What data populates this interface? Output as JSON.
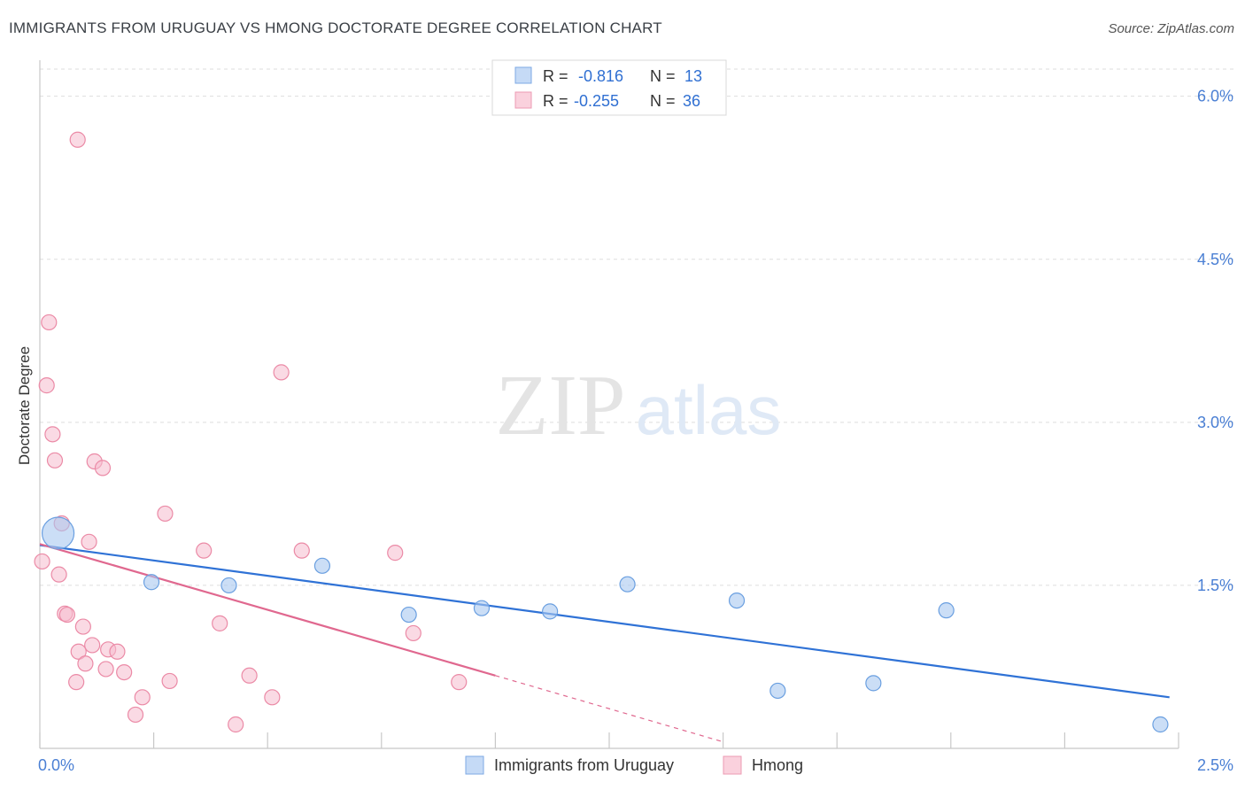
{
  "header": {
    "title": "IMMIGRANTS FROM URUGUAY VS HMONG DOCTORATE DEGREE CORRELATION CHART",
    "source": "Source: ZipAtlas.com"
  },
  "watermark": {
    "zip": "ZIP",
    "atlas": "atlas"
  },
  "colors": {
    "blue_fill": "#a8c8f0",
    "blue_stroke": "#6a9fe0",
    "blue_line": "#2f72d6",
    "pink_fill": "#f6bccd",
    "pink_stroke": "#eb8aa6",
    "pink_line": "#e0688f",
    "tick_label": "#4a7fd4",
    "grid": "#dddddd"
  },
  "legend_top": [
    {
      "series": "Immigrants from Uruguay",
      "r_label": "R =",
      "r_value": "-0.816",
      "n_label": "N =",
      "n_value": "13"
    },
    {
      "series": "Hmong",
      "r_label": "R =",
      "r_value": "-0.255",
      "n_label": "N =",
      "n_value": "36"
    }
  ],
  "chart_data": {
    "type": "scatter",
    "title": "IMMIGRANTS FROM URUGUAY VS HMONG DOCTORATE DEGREE CORRELATION CHART",
    "xlabel": "",
    "ylabel": "Doctorate Degree",
    "xlim": [
      0,
      2.5
    ],
    "ylim": [
      0,
      6.25
    ],
    "x_tick_labels": [
      "0.0%",
      "2.5%"
    ],
    "y_ticks": [
      1.5,
      3.0,
      4.5,
      6.0
    ],
    "y_tick_labels": [
      "1.5%",
      "3.0%",
      "4.5%",
      "6.0%"
    ],
    "legend_position": "bottom-center",
    "series": [
      {
        "name": "Immigrants from Uruguay",
        "color": "blue",
        "points": [
          {
            "x": 0.04,
            "y": 1.98,
            "size": "large"
          },
          {
            "x": 0.245,
            "y": 1.53
          },
          {
            "x": 0.415,
            "y": 1.5
          },
          {
            "x": 0.62,
            "y": 1.68
          },
          {
            "x": 0.81,
            "y": 1.23
          },
          {
            "x": 0.97,
            "y": 1.29
          },
          {
            "x": 1.12,
            "y": 1.26
          },
          {
            "x": 1.29,
            "y": 1.51
          },
          {
            "x": 1.53,
            "y": 1.36
          },
          {
            "x": 1.99,
            "y": 1.27
          },
          {
            "x": 1.62,
            "y": 0.53
          },
          {
            "x": 1.83,
            "y": 0.6
          },
          {
            "x": 2.46,
            "y": 0.22
          }
        ],
        "trend": {
          "x0": 0.0,
          "y0": 1.87,
          "x1": 2.48,
          "y1": 0.47
        }
      },
      {
        "name": "Hmong",
        "color": "pink",
        "points": [
          {
            "x": 0.083,
            "y": 5.6
          },
          {
            "x": 0.02,
            "y": 3.92
          },
          {
            "x": 0.015,
            "y": 3.34
          },
          {
            "x": 0.028,
            "y": 2.89
          },
          {
            "x": 0.033,
            "y": 2.65
          },
          {
            "x": 0.12,
            "y": 2.64
          },
          {
            "x": 0.138,
            "y": 2.58
          },
          {
            "x": 0.53,
            "y": 3.46
          },
          {
            "x": 0.275,
            "y": 2.16
          },
          {
            "x": 0.048,
            "y": 2.07
          },
          {
            "x": 0.108,
            "y": 1.9
          },
          {
            "x": 0.36,
            "y": 1.82
          },
          {
            "x": 0.575,
            "y": 1.82
          },
          {
            "x": 0.78,
            "y": 1.8
          },
          {
            "x": 0.005,
            "y": 1.72
          },
          {
            "x": 0.042,
            "y": 1.6
          },
          {
            "x": 0.055,
            "y": 1.24
          },
          {
            "x": 0.06,
            "y": 1.23
          },
          {
            "x": 0.095,
            "y": 1.12
          },
          {
            "x": 0.395,
            "y": 1.15
          },
          {
            "x": 0.82,
            "y": 1.06
          },
          {
            "x": 0.115,
            "y": 0.95
          },
          {
            "x": 0.085,
            "y": 0.89
          },
          {
            "x": 0.15,
            "y": 0.91
          },
          {
            "x": 0.17,
            "y": 0.89
          },
          {
            "x": 0.1,
            "y": 0.78
          },
          {
            "x": 0.145,
            "y": 0.73
          },
          {
            "x": 0.185,
            "y": 0.7
          },
          {
            "x": 0.08,
            "y": 0.61
          },
          {
            "x": 0.285,
            "y": 0.62
          },
          {
            "x": 0.46,
            "y": 0.67
          },
          {
            "x": 0.92,
            "y": 0.61
          },
          {
            "x": 0.225,
            "y": 0.47
          },
          {
            "x": 0.51,
            "y": 0.47
          },
          {
            "x": 0.21,
            "y": 0.31
          },
          {
            "x": 0.43,
            "y": 0.22
          }
        ],
        "trend": {
          "x0": 0.0,
          "y0": 1.88,
          "x1": 1.0,
          "y1": 0.67
        },
        "trend_extension": {
          "x0": 1.0,
          "y0": 0.67,
          "x1": 1.5,
          "y1": 0.06
        }
      }
    ]
  }
}
